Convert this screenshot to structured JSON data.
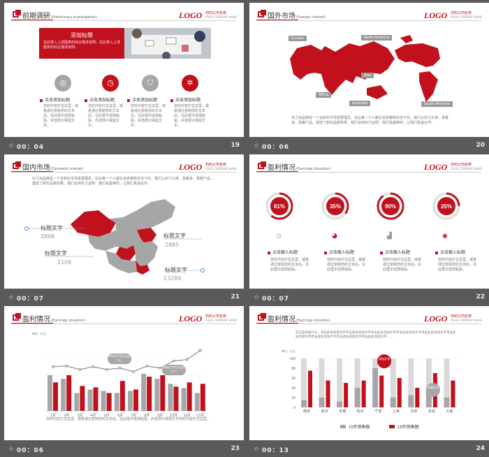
{
  "slides": [
    {
      "title": "前期调研",
      "title_en": "(Preliminary investigation)",
      "logo": "LOGO",
      "company": "你的公司名称",
      "company_sub": "YOUR COMPANY NAME",
      "banner_title": "添加标题",
      "banner_text": "在此录入上述图表的综合描述说明，在此录入上述图表的综合描述说明。",
      "items": [
        {
          "title": "点击添加标题",
          "text": "您的内容打在这里，或者通过复制您的文本后，在此框中选择粘贴，并选择只保留文字。"
        },
        {
          "title": "点击添加标题",
          "text": "您的内容打在这里，或者通过复制您的文本后，在此框中选择粘贴，并选择只保留文字。"
        },
        {
          "title": "点击添加标题",
          "text": "您的内容打在这里，或者通过复制您的文本后，在此框中选择粘贴，并选择只保留文字。"
        },
        {
          "title": "点击添加标题",
          "text": "您的内容打在这里，或者通过复制您的文本后，在此框中选择粘贴，并选择只保留文字。"
        }
      ],
      "time": "00：04",
      "num": "19"
    },
    {
      "title": "国外市场",
      "title_en": "(Foreign market)",
      "logo": "LOGO",
      "company": "你的公司名称",
      "company_sub": "YOUR COMPANY NAME",
      "regions": [
        "Europe",
        "North America",
        "Asia",
        "Africa",
        "Australia",
        "South America"
      ],
      "text": "实力加品牌是一个全新的市场发展理念。站在每一个人都在追逐着新的当下的，我们以实力为准，靠着争，靠着产品。建成了新的品牌效果。我们会用实力证明：我们是最棒的，让我们真诚合作。",
      "time": "00：06",
      "num": "20"
    },
    {
      "title": "国内市场",
      "title_en": "(Domestic market)",
      "logo": "LOGO",
      "company": "你的公司名称",
      "company_sub": "YOUR COMPANY NAME",
      "text": "实力加品牌是一个全新的市场发展理念。站在每一个人都在追逐着新的当下的，我们以实力为准，靠着争，靠着产品，建成了新的品牌效果。我们会用实力证明：我们是最棒的，让我们真诚合作。",
      "labels": [
        {
          "name": "标题文字",
          "value": "3896"
        },
        {
          "name": "标题文字",
          "value": "2865"
        },
        {
          "name": "标题文字",
          "value": "2106"
        },
        {
          "name": "标题文字",
          "value": "13289"
        }
      ],
      "time": "00：07",
      "num": "21"
    },
    {
      "title": "盈利情况",
      "title_en": "(Earnings situation)",
      "logo": "LOGO",
      "company": "你的公司名称",
      "company_sub": "YOUR COMPANY NAME",
      "rings": [
        {
          "value": "61%",
          "fraction": 0.61
        },
        {
          "value": "35%",
          "fraction": 0.35
        },
        {
          "value": "90%",
          "fraction": 0.9
        },
        {
          "value": "25%",
          "fraction": 0.25
        }
      ],
      "items": [
        {
          "title": "点击输入标题",
          "text": "您的内容打在这里，或者通过复制您的文本后，在此框中选择粘贴。"
        },
        {
          "title": "点击输入标题",
          "text": "您的内容打在这里，或者通过复制您的文本后，在此框中选择粘贴。"
        },
        {
          "title": "点击输入标题",
          "text": "您的内容打在这里，或者通过复制您的文本后，在此框中选择粘贴。"
        },
        {
          "title": "点击输入标题",
          "text": "您的内容打在这里，或者通过复制您的文本后，在此框中选择粘贴。"
        }
      ],
      "time": "00：07",
      "num": "22"
    },
    {
      "title": "盈利情况",
      "title_en": "(Earnings situation)",
      "logo": "LOGO",
      "company": "你的公司名称",
      "company_sub": "YOUR COMPANY NAME",
      "unit": "单位：亿元",
      "callouts": [
        "你的文字写在这里了么？",
        "你的文字写在这里了么？"
      ],
      "text": "您的内容打在这里，或者通过复制您的文本后，在此框中选择粘贴，并选择只保留文字你的内容打在这里。",
      "time": "00：06",
      "num": "23"
    },
    {
      "title": "盈利情况",
      "title_en": "(Earnings situation)",
      "logo": "LOGO",
      "company": "你的公司名称",
      "company_sub": "YOUR COMPANY NAME",
      "text": "在这里添加什么，单击此处添加文字单击此处添加文字单击此处添加文字单击此处添加文字单击此处添加文字单击此处添加文字单击此处添加文字单击此处添加文字单击此处添加文字……",
      "unit": "单位：亿元",
      "callouts": [
        "添加文字",
        "添加文字"
      ],
      "time": "00：13",
      "num": "24"
    }
  ],
  "chart_data": [
    {
      "type": "bar",
      "title": "",
      "unit": "单位：亿元",
      "categories": [
        "1月",
        "2月",
        "3月",
        "4月",
        "5月",
        "6月",
        "7月",
        "8月",
        "9月",
        "10月",
        "11月",
        "12月"
      ],
      "series": [
        {
          "values": [
            50,
            45,
            25,
            30,
            28,
            25,
            28,
            52,
            45,
            38,
            32,
            25
          ],
          "color": "#a6a6a6"
        },
        {
          "values": [
            40,
            50,
            35,
            33,
            25,
            42,
            30,
            48,
            50,
            34,
            40,
            38
          ],
          "color": "#c0111d"
        },
        {
          "values": [
            62,
            63,
            58,
            62,
            58,
            60,
            55,
            63,
            60,
            70,
            72,
            85
          ],
          "color": "#777777"
        }
      ],
      "ylim": [
        0,
        100
      ]
    },
    {
      "type": "bar",
      "title": "",
      "unit": "单位：亿元",
      "categories": [
        "南京",
        "武汉",
        "无锡",
        "杭州",
        "宁波",
        "上海",
        "北京",
        "青岛",
        "大连"
      ],
      "series": [
        {
          "name": "15年销售额",
          "values": [
            15,
            20,
            12,
            40,
            80,
            20,
            25,
            35,
            20
          ],
          "color": "#a6a6a6"
        },
        {
          "name": "16年销售额",
          "values": [
            75,
            55,
            50,
            55,
            65,
            60,
            40,
            70,
            55
          ],
          "color": "#c0111d"
        }
      ],
      "totals": [
        100,
        100,
        100,
        100,
        100,
        100,
        100,
        100,
        100
      ],
      "ylim": [
        0,
        100
      ],
      "yticks": [
        0,
        20,
        40,
        60,
        80,
        100
      ],
      "legend": "bottom"
    }
  ]
}
